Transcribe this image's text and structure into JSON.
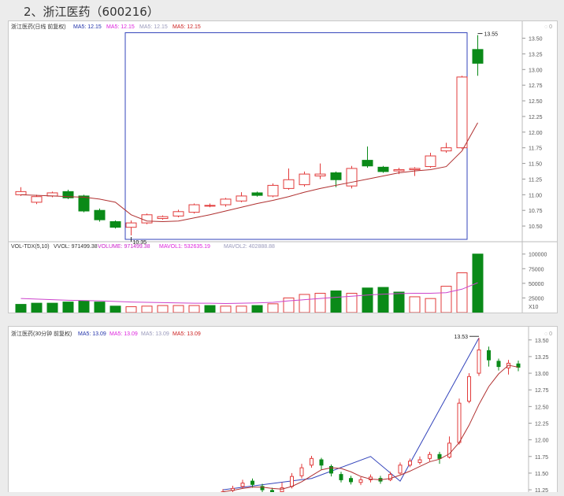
{
  "heading": "2、浙江医药（600216）",
  "colors": {
    "up": "#e23b3b",
    "down": "#0a8a18",
    "ma": "#b03030",
    "vol_ma": "#cc44cc",
    "selection": "#3344bb",
    "volume_label": "#cc22cc",
    "ma10_label": "#dd22dd",
    "ma20_label": "#9999bb",
    "ma30_label": "#cc2222"
  },
  "chart_data": [
    {
      "type": "candlestick",
      "title": "浙江医药(日线 前复权)",
      "legend": [
        {
          "label": "MA5: 12.15",
          "color": "#2233aa"
        },
        {
          "label": "MA5: 12.15",
          "color": "#dd22dd"
        },
        {
          "label": "MA5: 12.15",
          "color": "#9999bb"
        },
        {
          "label": "MA5: 12.15",
          "color": "#cc2222"
        }
      ],
      "y_ticks": [
        "13.50",
        "13.25",
        "13.00",
        "12.75",
        "12.50",
        "12.25",
        "12.00",
        "11.75",
        "11.50",
        "11.25",
        "11.00",
        "10.75",
        "10.50"
      ],
      "ylim": [
        10.3,
        13.62
      ],
      "candles": [
        {
          "o": 11.0,
          "c": 11.05,
          "h": 11.12,
          "l": 10.98
        },
        {
          "o": 10.88,
          "c": 10.97,
          "h": 11.0,
          "l": 10.85
        },
        {
          "o": 10.98,
          "c": 11.03,
          "h": 11.05,
          "l": 10.96
        },
        {
          "o": 11.05,
          "c": 10.95,
          "h": 11.08,
          "l": 10.93
        },
        {
          "o": 10.98,
          "c": 10.74,
          "h": 11.0,
          "l": 10.72
        },
        {
          "o": 10.75,
          "c": 10.6,
          "h": 10.78,
          "l": 10.57
        },
        {
          "o": 10.57,
          "c": 10.48,
          "h": 10.59,
          "l": 10.46
        },
        {
          "o": 10.48,
          "c": 10.55,
          "h": 10.59,
          "l": 10.35
        },
        {
          "o": 10.55,
          "c": 10.68,
          "h": 10.7,
          "l": 10.53
        },
        {
          "o": 10.62,
          "c": 10.65,
          "h": 10.67,
          "l": 10.6
        },
        {
          "o": 10.66,
          "c": 10.73,
          "h": 10.76,
          "l": 10.64
        },
        {
          "o": 10.72,
          "c": 10.84,
          "h": 10.86,
          "l": 10.7
        },
        {
          "o": 10.82,
          "c": 10.83,
          "h": 10.86,
          "l": 10.8
        },
        {
          "o": 10.84,
          "c": 10.93,
          "h": 10.95,
          "l": 10.81
        },
        {
          "o": 10.9,
          "c": 10.98,
          "h": 11.04,
          "l": 10.88
        },
        {
          "o": 11.03,
          "c": 10.99,
          "h": 11.05,
          "l": 10.97
        },
        {
          "o": 10.98,
          "c": 11.15,
          "h": 11.18,
          "l": 10.96
        },
        {
          "o": 11.1,
          "c": 11.24,
          "h": 11.42,
          "l": 11.08
        },
        {
          "o": 11.16,
          "c": 11.33,
          "h": 11.37,
          "l": 11.13
        },
        {
          "o": 11.3,
          "c": 11.33,
          "h": 11.5,
          "l": 11.25
        },
        {
          "o": 11.35,
          "c": 11.24,
          "h": 11.37,
          "l": 11.12
        },
        {
          "o": 11.14,
          "c": 11.42,
          "h": 11.46,
          "l": 11.1
        },
        {
          "o": 11.55,
          "c": 11.46,
          "h": 11.77,
          "l": 11.43
        },
        {
          "o": 11.44,
          "c": 11.37,
          "h": 11.46,
          "l": 11.35
        },
        {
          "o": 11.38,
          "c": 11.4,
          "h": 11.43,
          "l": 11.33
        },
        {
          "o": 11.4,
          "c": 11.42,
          "h": 11.44,
          "l": 11.3
        },
        {
          "o": 11.45,
          "c": 11.62,
          "h": 11.67,
          "l": 11.43
        },
        {
          "o": 11.7,
          "c": 11.75,
          "h": 11.83,
          "l": 11.67
        },
        {
          "o": 11.75,
          "c": 12.88,
          "h": 12.9,
          "l": 11.73
        },
        {
          "o": 13.32,
          "c": 13.1,
          "h": 13.55,
          "l": 12.9
        }
      ],
      "ma": [
        11.0,
        10.99,
        10.98,
        10.97,
        10.96,
        10.93,
        10.88,
        10.68,
        10.58,
        10.57,
        10.58,
        10.63,
        10.68,
        10.74,
        10.8,
        10.86,
        10.91,
        10.97,
        11.04,
        11.1,
        11.15,
        11.2,
        11.25,
        11.3,
        11.35,
        11.38,
        11.4,
        11.45,
        11.7,
        12.15
      ],
      "annotations": [
        {
          "text": "10.35",
          "index": 7,
          "value": 10.35,
          "anchor": "low"
        },
        {
          "text": "13.55",
          "index": 29,
          "value": 13.55,
          "anchor": "high"
        }
      ],
      "selection_range": {
        "from_index": 7,
        "to_index": 29,
        "low": 10.35,
        "high": 13.55
      },
      "corner_icons": "◌ 0"
    },
    {
      "type": "bar",
      "title": "VOL-TDX(5,10)",
      "legend": [
        {
          "label": "VVOL: 971499.38",
          "color": "#333333"
        },
        {
          "label": "VOLUME: 971499.38",
          "color": "#cc22cc"
        },
        {
          "label": "MAVOL1: 532635.19",
          "color": "#dd22dd"
        },
        {
          "label": "MAVOL2: 402888.88",
          "color": "#9999bb"
        }
      ],
      "y_ticks": [
        "100000",
        "75000",
        "50000",
        "25000"
      ],
      "unit_label": "X10",
      "ylim": [
        0,
        105000
      ],
      "values": [
        14000,
        16000,
        16000,
        18000,
        20000,
        18000,
        11000,
        10000,
        11000,
        12000,
        12000,
        12000,
        12000,
        11000,
        11000,
        12000,
        15000,
        25000,
        31000,
        33000,
        37000,
        33000,
        42000,
        43000,
        35000,
        27000,
        24000,
        45000,
        68000,
        100000
      ],
      "directions": [
        "down",
        "down",
        "down",
        "down",
        "down",
        "down",
        "down",
        "up",
        "up",
        "up",
        "up",
        "up",
        "down",
        "up",
        "up",
        "down",
        "up",
        "up",
        "up",
        "up",
        "down",
        "up",
        "down",
        "down",
        "down",
        "up",
        "up",
        "up",
        "up",
        "down"
      ],
      "ma": [
        24000,
        23000,
        22000,
        21000,
        20500,
        20000,
        19000,
        18000,
        17500,
        17000,
        16500,
        16000,
        16000,
        15500,
        16000,
        16500,
        17500,
        20000,
        22000,
        24000,
        26000,
        28000,
        30000,
        31500,
        32500,
        33000,
        33000,
        34000,
        40000,
        51000
      ]
    },
    {
      "type": "candlestick",
      "title": "浙江医药(30分钟 前复权)",
      "legend": [
        {
          "label": "MA5: 13.09",
          "color": "#2233aa"
        },
        {
          "label": "MA5: 13.09",
          "color": "#dd22dd"
        },
        {
          "label": "MA5: 13.09",
          "color": "#9999bb"
        },
        {
          "label": "MA5: 13.09",
          "color": "#cc2222"
        }
      ],
      "y_ticks": [
        "13.50",
        "13.25",
        "13.00",
        "12.75",
        "12.50",
        "12.25",
        "12.00",
        "11.75",
        "11.50",
        "11.25"
      ],
      "ylim": [
        11.05,
        13.58
      ],
      "candles": [
        {
          "o": 11.2,
          "c": 11.22,
          "h": 11.26,
          "l": 11.17
        },
        {
          "o": 11.24,
          "c": 11.27,
          "h": 11.31,
          "l": 11.2
        },
        {
          "o": 11.3,
          "c": 11.35,
          "h": 11.4,
          "l": 11.27
        },
        {
          "o": 11.38,
          "c": 11.33,
          "h": 11.42,
          "l": 11.28
        },
        {
          "o": 11.3,
          "c": 11.25,
          "h": 11.34,
          "l": 11.21
        },
        {
          "o": 11.24,
          "c": 11.2,
          "h": 11.28,
          "l": 11.16
        },
        {
          "o": 11.22,
          "c": 11.28,
          "h": 11.36,
          "l": 11.18
        },
        {
          "o": 11.3,
          "c": 11.45,
          "h": 11.5,
          "l": 11.27
        },
        {
          "o": 11.46,
          "c": 11.58,
          "h": 11.64,
          "l": 11.42
        },
        {
          "o": 11.62,
          "c": 11.72,
          "h": 11.76,
          "l": 11.58
        },
        {
          "o": 11.7,
          "c": 11.62,
          "h": 11.73,
          "l": 11.55
        },
        {
          "o": 11.6,
          "c": 11.5,
          "h": 11.63,
          "l": 11.45
        },
        {
          "o": 11.48,
          "c": 11.4,
          "h": 11.52,
          "l": 11.36
        },
        {
          "o": 11.42,
          "c": 11.37,
          "h": 11.46,
          "l": 11.33
        },
        {
          "o": 11.36,
          "c": 11.4,
          "h": 11.44,
          "l": 11.32
        },
        {
          "o": 11.4,
          "c": 11.44,
          "h": 11.48,
          "l": 11.36
        },
        {
          "o": 11.42,
          "c": 11.38,
          "h": 11.46,
          "l": 11.34
        },
        {
          "o": 11.4,
          "c": 11.48,
          "h": 11.52,
          "l": 11.38
        },
        {
          "o": 11.5,
          "c": 11.62,
          "h": 11.66,
          "l": 11.48
        },
        {
          "o": 11.62,
          "c": 11.68,
          "h": 11.72,
          "l": 11.59
        },
        {
          "o": 11.66,
          "c": 11.7,
          "h": 11.75,
          "l": 11.63
        },
        {
          "o": 11.72,
          "c": 11.78,
          "h": 11.82,
          "l": 11.68
        },
        {
          "o": 11.78,
          "c": 11.72,
          "h": 11.82,
          "l": 11.64
        },
        {
          "o": 11.74,
          "c": 11.95,
          "h": 12.05,
          "l": 11.72
        },
        {
          "o": 11.96,
          "c": 12.55,
          "h": 12.62,
          "l": 11.93
        },
        {
          "o": 12.58,
          "c": 12.95,
          "h": 13.0,
          "l": 12.55
        },
        {
          "o": 13.0,
          "c": 13.35,
          "h": 13.53,
          "l": 12.96
        },
        {
          "o": 13.34,
          "c": 13.2,
          "h": 13.4,
          "l": 13.1
        },
        {
          "o": 13.18,
          "c": 13.1,
          "h": 13.22,
          "l": 13.04
        },
        {
          "o": 13.08,
          "c": 13.15,
          "h": 13.2,
          "l": 12.98
        },
        {
          "o": 13.14,
          "c": 13.09,
          "h": 13.19,
          "l": 13.03
        }
      ],
      "ma": [
        11.22,
        11.24,
        11.27,
        11.29,
        11.29,
        11.27,
        11.26,
        11.3,
        11.37,
        11.46,
        11.55,
        11.58,
        11.57,
        11.52,
        11.45,
        11.41,
        11.4,
        11.42,
        11.47,
        11.53,
        11.6,
        11.67,
        11.71,
        11.79,
        11.96,
        12.22,
        12.53,
        12.8,
        12.99,
        13.12,
        13.09
      ],
      "trend_points": [
        {
          "index": 0,
          "value": 11.25
        },
        {
          "index": 9,
          "value": 11.42
        },
        {
          "index": 15,
          "value": 11.75
        },
        {
          "index": 18,
          "value": 11.38
        },
        {
          "index": 26,
          "value": 13.53
        }
      ],
      "annotations": [
        {
          "text": "13.53",
          "index": 26,
          "value": 13.53,
          "anchor": "high"
        }
      ],
      "corner_icons": "◌ 0"
    }
  ]
}
